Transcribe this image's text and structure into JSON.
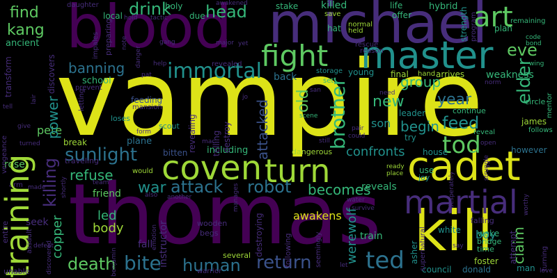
{
  "palette": {
    "background": "#000000",
    "yellow": "#dde318",
    "lime": "#9fd938",
    "green": "#5ec962",
    "teal_green": "#35b779",
    "teal": "#21918c",
    "blue_teal": "#2c728e",
    "blue": "#3b528b",
    "indigo": "#472d7b",
    "purple": "#440154"
  },
  "words": [
    {
      "id": "vampire",
      "text": "vampire",
      "color": "#dde318"
    },
    {
      "id": "thomas",
      "text": "thomas",
      "color": "#440154"
    },
    {
      "id": "blood",
      "text": "blood",
      "color": "#440154"
    },
    {
      "id": "michael",
      "text": "michael",
      "color": "#472d7b"
    },
    {
      "id": "kill",
      "text": "kill",
      "color": "#dde318"
    },
    {
      "id": "master",
      "text": "master",
      "color": "#21918c"
    },
    {
      "id": "cadet",
      "text": "cadet",
      "color": "#dde318"
    },
    {
      "id": "coven",
      "text": "coven",
      "color": "#9fd938"
    },
    {
      "id": "turn",
      "text": "turn",
      "color": "#9fd938"
    },
    {
      "id": "training",
      "text": "training",
      "color": "#9fd938"
    },
    {
      "id": "martial",
      "text": "martial",
      "color": "#472d7b"
    },
    {
      "id": "fight",
      "text": "fight",
      "color": "#5ec962"
    },
    {
      "id": "art",
      "text": "art",
      "color": "#5ec962"
    },
    {
      "id": "immortal",
      "text": "immortal",
      "color": "#21918c"
    },
    {
      "id": "drink",
      "text": "drink",
      "color": "#35b779"
    },
    {
      "id": "head",
      "text": "head",
      "color": "#35b779"
    },
    {
      "id": "find",
      "text": "find",
      "color": "#5ec962"
    },
    {
      "id": "kang",
      "text": "kang",
      "color": "#5ec962"
    },
    {
      "id": "banning",
      "text": "banning",
      "color": "#2c728e"
    },
    {
      "id": "sunlight",
      "text": "sunlight",
      "color": "#2c728e"
    },
    {
      "id": "attack",
      "text": "attack",
      "color": "#2c728e"
    },
    {
      "id": "robot",
      "text": "robot",
      "color": "#2c728e"
    },
    {
      "id": "death",
      "text": "death",
      "color": "#5ec962"
    },
    {
      "id": "bite",
      "text": "bite",
      "color": "#2c728e"
    },
    {
      "id": "human",
      "text": "human",
      "color": "#2c728e"
    },
    {
      "id": "return",
      "text": "return",
      "color": "#3b528b"
    },
    {
      "id": "ted",
      "text": "ted",
      "color": "#2c728e"
    },
    {
      "id": "tod",
      "text": "tod",
      "color": "#5ec962"
    },
    {
      "id": "feed",
      "text": "feed",
      "color": "#21918c"
    },
    {
      "id": "new",
      "text": "new",
      "color": "#35b779"
    },
    {
      "id": "year",
      "text": "year",
      "color": "#2c728e"
    },
    {
      "id": "brother",
      "text": "brother",
      "color": "#35b779"
    },
    {
      "id": "eve",
      "text": "eve",
      "color": "#5ec962"
    },
    {
      "id": "elder",
      "text": "elder",
      "color": "#35b779"
    },
    {
      "id": "killing",
      "text": "killing",
      "color": "#472d7b"
    },
    {
      "id": "power",
      "text": "power",
      "color": "#21918c"
    },
    {
      "id": "refuse",
      "text": "refuse",
      "color": "#35b779"
    },
    {
      "id": "war",
      "text": "war",
      "color": "#21918c"
    },
    {
      "id": "becomes",
      "text": "becomes",
      "color": "#35b779"
    },
    {
      "id": "werewolf",
      "text": "werewolf",
      "color": "#21918c"
    },
    {
      "id": "copper",
      "text": "copper",
      "color": "#35b779"
    },
    {
      "id": "led",
      "text": "led",
      "color": "#35b779"
    },
    {
      "id": "body",
      "text": "body",
      "color": "#9fd938"
    },
    {
      "id": "awakens",
      "text": "awakens",
      "color": "#dde318"
    },
    {
      "id": "pete",
      "text": "pete",
      "color": "#5ec962"
    },
    {
      "id": "group",
      "text": "group",
      "color": "#35b779"
    },
    {
      "id": "begin",
      "text": "begin",
      "color": "#21918c"
    },
    {
      "id": "son",
      "text": "son",
      "color": "#21918c"
    },
    {
      "id": "confronts",
      "text": "confronts",
      "color": "#21918c"
    },
    {
      "id": "attacked",
      "text": "attacked",
      "color": "#3b528b"
    },
    {
      "id": "old",
      "text": "old",
      "color": "#5ec962"
    },
    {
      "id": "claim",
      "text": "claim",
      "color": "#5ec962"
    },
    {
      "id": "boy",
      "text": "boy",
      "color": "#21918c"
    },
    {
      "id": "weakness",
      "text": "weakness",
      "color": "#35b779"
    },
    {
      "id": "killed",
      "text": "killed",
      "color": "#35b779"
    },
    {
      "id": "friend",
      "text": "friend",
      "color": "#5ec962"
    },
    {
      "id": "seek",
      "text": "seek",
      "color": "#472d7b"
    },
    {
      "id": "train",
      "text": "train",
      "color": "#35b779"
    },
    {
      "id": "reveals",
      "text": "reveals",
      "color": "#35b779"
    },
    {
      "id": "rose",
      "text": "rose",
      "color": "#5ec962"
    },
    {
      "id": "ancient",
      "text": "ancient",
      "color": "#35b779"
    },
    {
      "id": "school",
      "text": "school",
      "color": "#35b779"
    },
    {
      "id": "plane",
      "text": "plane",
      "color": "#2c728e"
    },
    {
      "id": "including",
      "text": "including",
      "color": "#35b779"
    },
    {
      "id": "bitten",
      "text": "bitten",
      "color": "#3b528b"
    },
    {
      "id": "hybrid",
      "text": "hybrid",
      "color": "#35b779"
    },
    {
      "id": "strength",
      "text": "strength",
      "color": "#21918c"
    },
    {
      "id": "local",
      "text": "local",
      "color": "#35b779"
    },
    {
      "id": "holy",
      "text": "holy",
      "color": "#35b779"
    },
    {
      "id": "due",
      "text": "due",
      "color": "#35b779"
    },
    {
      "id": "stake",
      "text": "stake",
      "color": "#35b779"
    },
    {
      "id": "life",
      "text": "life",
      "color": "#35b779"
    },
    {
      "id": "offer",
      "text": "offer",
      "color": "#35b779"
    },
    {
      "id": "plan",
      "text": "plan",
      "color": "#35b779"
    },
    {
      "id": "hand",
      "text": "hand",
      "color": "#9fd938"
    },
    {
      "id": "arrives",
      "text": "arrives",
      "color": "#9fd938"
    },
    {
      "id": "final",
      "text": "final",
      "color": "#9fd938"
    },
    {
      "id": "young",
      "text": "young",
      "color": "#21918c"
    },
    {
      "id": "back",
      "text": "back",
      "color": "#2c728e"
    },
    {
      "id": "leader",
      "text": "leader",
      "color": "#21918c"
    },
    {
      "id": "try",
      "text": "try",
      "color": "#21918c"
    },
    {
      "id": "white",
      "text": "white",
      "color": "#21918c"
    },
    {
      "id": "council",
      "text": "council",
      "color": "#21918c"
    },
    {
      "id": "donald",
      "text": "donald",
      "color": "#2c728e"
    },
    {
      "id": "man",
      "text": "man",
      "color": "#21918c"
    },
    {
      "id": "james",
      "text": "james",
      "color": "#9fd938"
    },
    {
      "id": "however",
      "text": "however",
      "color": "#2c728e"
    },
    {
      "id": "feeding",
      "text": "feeding",
      "color": "#3b528b"
    },
    {
      "id": "dangerous",
      "text": "dangerous",
      "color": "#9fd938"
    },
    {
      "id": "house",
      "text": "house",
      "color": "#21918c"
    },
    {
      "id": "use",
      "text": "use",
      "color": "#35b779"
    },
    {
      "id": "joy",
      "text": "joy",
      "color": "#21918c"
    },
    {
      "id": "fall",
      "text": "fall",
      "color": "#472d7b"
    },
    {
      "id": "instructor",
      "text": "instructor",
      "color": "#472d7b"
    },
    {
      "id": "destroying",
      "text": "destroying",
      "color": "#472d7b"
    },
    {
      "id": "following",
      "text": "following",
      "color": "#472d7b"
    },
    {
      "id": "asher",
      "text": "asher",
      "color": "#21918c"
    },
    {
      "id": "attempt",
      "text": "attempt",
      "color": "#472d7b"
    },
    {
      "id": "foster",
      "text": "foster",
      "color": "#9fd938"
    },
    {
      "id": "wooden",
      "text": "wooden",
      "color": "#472d7b"
    },
    {
      "id": "begs",
      "text": "begs",
      "color": "#472d7b"
    },
    {
      "id": "several",
      "text": "several",
      "color": "#9fd938"
    },
    {
      "id": "warrior",
      "text": "warrior",
      "color": "#472d7b"
    },
    {
      "id": "revealed",
      "text": "revealed",
      "color": "#472d7b"
    },
    {
      "id": "revealing",
      "text": "revealing",
      "color": "#472d7b"
    },
    {
      "id": "telling",
      "text": "telling",
      "color": "#472d7b"
    },
    {
      "id": "destroy",
      "text": "destroy",
      "color": "#472d7b"
    },
    {
      "id": "scout",
      "text": "scout",
      "color": "#21918c"
    },
    {
      "id": "loses",
      "text": "loses",
      "color": "#21918c"
    },
    {
      "id": "break",
      "text": "break",
      "color": "#9fd938"
    },
    {
      "id": "traveling",
      "text": "traveling",
      "color": "#472d7b"
    },
    {
      "id": "entire",
      "text": "entire",
      "color": "#472d7b"
    },
    {
      "id": "assault",
      "text": "assault",
      "color": "#472d7b"
    },
    {
      "id": "unable",
      "text": "unable",
      "color": "#472d7b"
    },
    {
      "id": "daughter",
      "text": "daughter",
      "color": "#472d7b"
    },
    {
      "id": "awakened",
      "text": "awakened",
      "color": "#472d7b"
    },
    {
      "id": "transform",
      "text": "transform",
      "color": "#472d7b"
    },
    {
      "id": "vengeance",
      "text": "vengeance",
      "color": "#472d7b"
    },
    {
      "id": "discovers",
      "text": "discovers",
      "color": "#472d7b"
    },
    {
      "id": "preparing",
      "text": "preparing",
      "color": "#472d7b"
    },
    {
      "id": "impales",
      "text": "impales",
      "color": "#472d7b"
    },
    {
      "id": "prevent",
      "text": "prevent",
      "color": "#472d7b"
    },
    {
      "id": "letting",
      "text": "letting",
      "color": "#472d7b"
    },
    {
      "id": "mansion",
      "text": "mansion",
      "color": "#472d7b"
    },
    {
      "id": "emotion",
      "text": "emotion",
      "color": "#472d7b"
    },
    {
      "id": "benjamin",
      "text": "benjamin",
      "color": "#472d7b"
    },
    {
      "id": "discovered",
      "text": "discovered",
      "color": "#472d7b"
    },
    {
      "id": "shortly",
      "text": "shortly",
      "color": "#472d7b"
    },
    {
      "id": "seemingly",
      "text": "seemingly",
      "color": "#472d7b"
    },
    {
      "id": "supernatural",
      "text": "supernatural",
      "color": "#472d7b"
    },
    {
      "id": "desperately",
      "text": "desperately",
      "color": "#472d7b"
    },
    {
      "id": "falling",
      "text": "falling",
      "color": "#472d7b"
    },
    {
      "id": "wake",
      "text": "wake",
      "color": "#35b779"
    },
    {
      "id": "bridge",
      "text": "bridge",
      "color": "#35b779"
    },
    {
      "id": "time",
      "text": "time",
      "color": "#35b779"
    },
    {
      "id": "continue",
      "text": "continue",
      "color": "#35b779"
    },
    {
      "id": "reveal",
      "text": "reveal",
      "color": "#35b779"
    },
    {
      "id": "follows",
      "text": "follows",
      "color": "#35b779"
    },
    {
      "id": "circle",
      "text": "circle",
      "color": "#35b779"
    },
    {
      "id": "mentor",
      "text": "mentor",
      "color": "#35b779"
    },
    {
      "id": "remaining",
      "text": "remaining",
      "color": "#35b779"
    },
    {
      "id": "code",
      "text": "code",
      "color": "#35b779"
    },
    {
      "id": "bond",
      "text": "bond",
      "color": "#35b779"
    },
    {
      "id": "wing",
      "text": "wing",
      "color": "#35b779"
    },
    {
      "id": "program",
      "text": "program",
      "color": "#472d7b"
    },
    {
      "id": "rescue",
      "text": "rescue",
      "color": "#472d7b"
    },
    {
      "id": "reason",
      "text": "reason",
      "color": "#472d7b"
    },
    {
      "id": "normal",
      "text": "normal",
      "color": "#9fd938"
    },
    {
      "id": "held",
      "text": "held",
      "color": "#9fd938"
    },
    {
      "id": "hat",
      "text": "hat",
      "color": "#35b779"
    },
    {
      "id": "save",
      "text": "save",
      "color": "#9fd938"
    },
    {
      "id": "storage",
      "text": "storage",
      "color": "#21918c"
    },
    {
      "id": "set",
      "text": "set",
      "color": "#35b779"
    },
    {
      "id": "scene",
      "text": "scene",
      "color": "#35b779"
    },
    {
      "id": "still",
      "text": "still",
      "color": "#472d7b"
    },
    {
      "id": "could",
      "text": "could",
      "color": "#472d7b"
    },
    {
      "id": "pair",
      "text": "pair",
      "color": "#472d7b"
    },
    {
      "id": "ready",
      "text": "ready",
      "color": "#9fd938"
    },
    {
      "id": "place",
      "text": "place",
      "color": "#9fd938"
    },
    {
      "id": "water",
      "text": "water",
      "color": "#472d7b"
    },
    {
      "id": "survive",
      "text": "survive",
      "color": "#472d7b"
    },
    {
      "id": "let",
      "text": "let",
      "color": "#472d7b"
    },
    {
      "id": "manages",
      "text": "manages",
      "color": "#472d7b"
    },
    {
      "id": "another",
      "text": "another",
      "color": "#472d7b"
    },
    {
      "id": "also",
      "text": "also",
      "color": "#472d7b"
    },
    {
      "id": "would",
      "text": "would",
      "color": "#9fd938"
    },
    {
      "id": "team",
      "text": "team",
      "color": "#472d7b"
    },
    {
      "id": "arm",
      "text": "arm",
      "color": "#472d7b"
    },
    {
      "id": "made",
      "text": "made",
      "color": "#472d7b"
    },
    {
      "id": "defeat",
      "text": "defeat",
      "color": "#472d7b"
    },
    {
      "id": "turned",
      "text": "turned",
      "color": "#472d7b"
    },
    {
      "id": "give",
      "text": "give",
      "color": "#472d7b"
    },
    {
      "id": "tell",
      "text": "tell",
      "color": "#472d7b"
    },
    {
      "id": "mac",
      "text": "mac",
      "color": "#472d7b"
    },
    {
      "id": "form",
      "text": "form",
      "color": "#472d7b"
    },
    {
      "id": "help",
      "text": "help",
      "color": "#472d7b"
    },
    {
      "id": "pat",
      "text": "pat",
      "color": "#472d7b"
    },
    {
      "id": "gang",
      "text": "gang",
      "color": "#472d7b"
    },
    {
      "id": "tactic",
      "text": "tactic",
      "color": "#472d7b"
    },
    {
      "id": "hold",
      "text": "hold",
      "color": "#472d7b"
    },
    {
      "id": "note",
      "text": "note",
      "color": "#472d7b"
    },
    {
      "id": "major",
      "text": "major",
      "color": "#472d7b"
    },
    {
      "id": "danger",
      "text": "danger",
      "color": "#472d7b"
    },
    {
      "id": "yet",
      "text": "yet",
      "color": "#472d7b"
    },
    {
      "id": "lair",
      "text": "lair",
      "color": "#472d7b"
    },
    {
      "id": "jo",
      "text": "jo",
      "color": "#472d7b"
    },
    {
      "id": "san",
      "text": "san",
      "color": "#472d7b"
    },
    {
      "id": "norm",
      "text": "norm",
      "color": "#472d7b"
    },
    {
      "id": "open",
      "text": "open",
      "color": "#472d7b"
    },
    {
      "id": "worthy",
      "text": "worthy",
      "color": "#472d7b"
    },
    {
      "id": "say",
      "text": "say",
      "color": "#472d7b"
    },
    {
      "id": "love",
      "text": "love",
      "color": "#472d7b"
    },
    {
      "id": "turning",
      "text": "turning",
      "color": "#472d7b"
    },
    {
      "id": "struggle",
      "text": "struggle",
      "color": "#472d7b"
    },
    {
      "id": "need",
      "text": "need",
      "color": "#472d7b"
    }
  ]
}
